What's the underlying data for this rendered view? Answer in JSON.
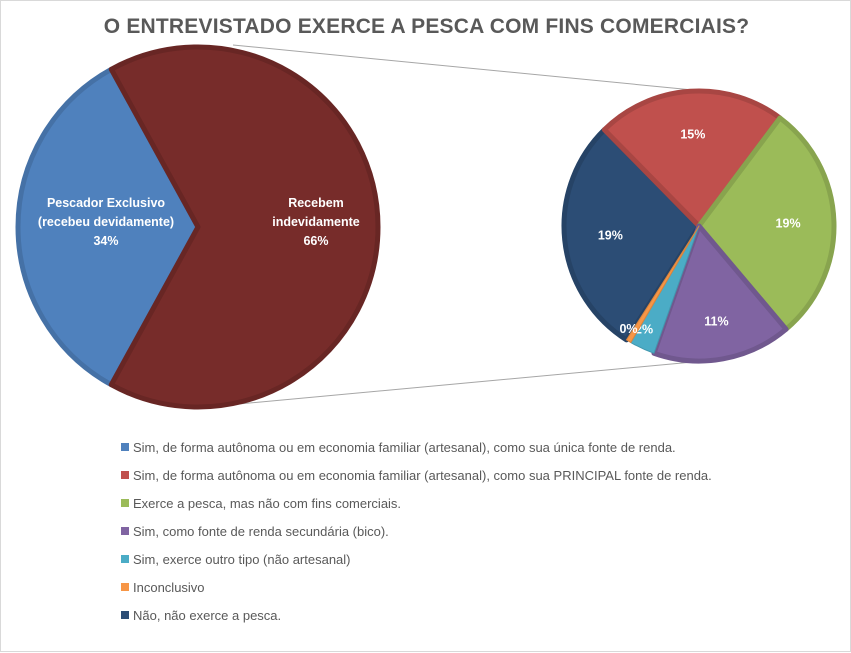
{
  "chart_data": {
    "type": "pie-of-pie",
    "title": "O ENTREVISTADO EXERCE A PESCA COM FINS COMERCIAIS?",
    "primary": [
      {
        "label": "Pescador Exclusivo (recebeu devidamente)",
        "lines": [
          "Pescador Exclusivo",
          "(recebeu devidamente)",
          "34%"
        ],
        "value": 34,
        "color": "#4F81BD"
      },
      {
        "label": "Recebem indevidamente",
        "lines": [
          "Recebem",
          "indevidamente",
          "66%"
        ],
        "value": 66,
        "color": "#772C2A"
      }
    ],
    "secondary": [
      {
        "value": 19,
        "label": "19%",
        "color": "#2C4D75"
      },
      {
        "value": 15,
        "label": "15%",
        "color": "#C0504D"
      },
      {
        "value": 19,
        "label": "19%",
        "color": "#9BBB59"
      },
      {
        "value": 11,
        "label": "11%",
        "color": "#8064A2"
      },
      {
        "value": 2,
        "label": "2%",
        "color": "#4BACC6"
      },
      {
        "value": 0.4,
        "label": "0%",
        "color": "#F79646"
      }
    ],
    "legend": [
      {
        "label": "Sim, de forma autônoma ou em economia familiar (artesanal), como sua única fonte de renda.",
        "color": "#4F81BD"
      },
      {
        "label": "Sim, de forma autônoma ou em economia familiar (artesanal), como sua PRINCIPAL fonte de renda.",
        "color": "#C0504D"
      },
      {
        "label": "Exerce a pesca, mas não com fins comerciais.",
        "color": "#9BBB59"
      },
      {
        "label": "Sim, como fonte de renda secundária (bico).",
        "color": "#8064A2"
      },
      {
        "label": "Sim, exerce outro tipo (não artesanal)",
        "color": "#4BACC6"
      },
      {
        "label": "Inconclusivo",
        "color": "#F79646"
      },
      {
        "label": "Não, não exerce a pesca.",
        "color": "#2C4D75"
      }
    ],
    "legend_position": "bottom"
  }
}
